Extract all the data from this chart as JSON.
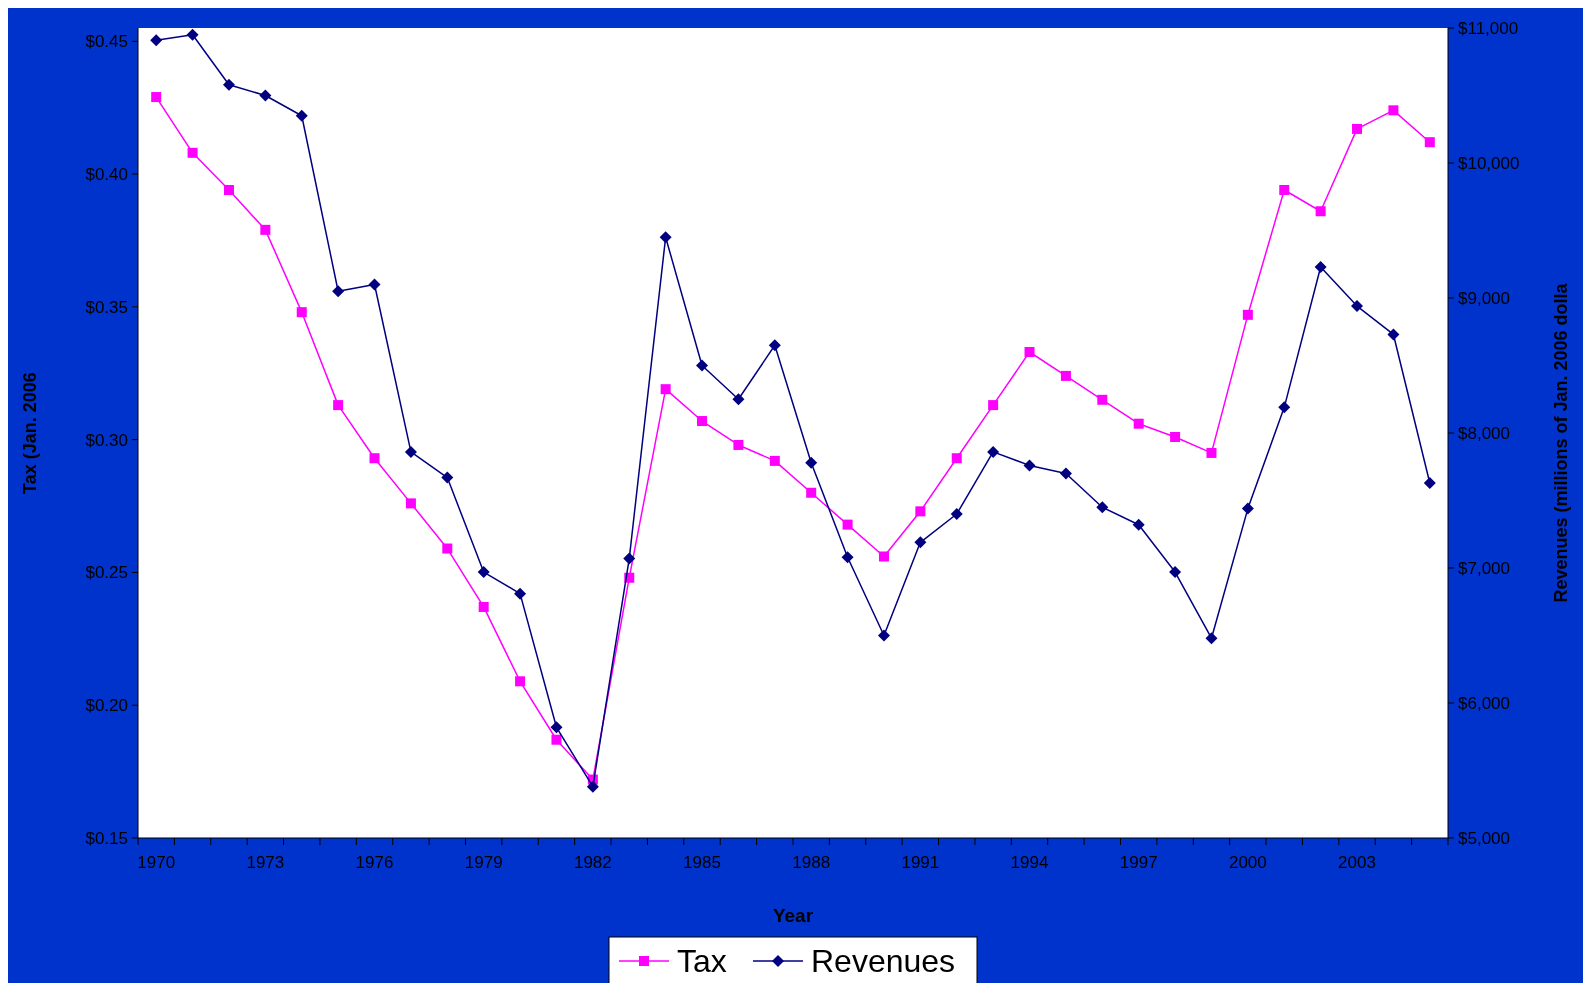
{
  "chart_data": {
    "type": "line",
    "xlabel": "Year",
    "ylabel": "Tax (Jan. 2006",
    "y2label": "Revenues (millions of Jan. 2006 dolla",
    "categories": [
      "1970",
      null,
      null,
      "1973",
      null,
      null,
      "1976",
      null,
      null,
      "1979",
      null,
      null,
      "1982",
      null,
      null,
      "1985",
      null,
      null,
      "1988",
      null,
      null,
      "1991",
      null,
      null,
      "1994",
      null,
      null,
      "1997",
      null,
      null,
      "2000",
      null,
      null,
      "2003",
      null,
      null
    ],
    "series": [
      {
        "name": "Tax",
        "color": "#ff00ff",
        "marker": "square",
        "values": [
          0.429,
          0.408,
          0.394,
          0.379,
          0.348,
          0.313,
          0.293,
          0.276,
          0.259,
          0.237,
          0.209,
          0.187,
          0.172,
          0.248,
          0.319,
          0.307,
          0.298,
          0.292,
          0.28,
          0.268,
          0.256,
          0.273,
          0.293,
          0.313,
          0.333,
          0.324,
          0.315,
          0.306,
          0.301,
          0.295,
          0.347,
          0.394,
          0.386,
          0.417,
          0.424,
          0.412
        ]
      },
      {
        "name": "Revenues",
        "color": "#000080",
        "marker": "diamond",
        "axis": "y2",
        "values": [
          10910,
          10950,
          10580,
          10500,
          10350,
          9050,
          9100,
          7860,
          7670,
          6970,
          6810,
          5820,
          5380,
          7070,
          9450,
          8500,
          8250,
          8650,
          7780,
          7080,
          6500,
          7190,
          7400,
          7860,
          7760,
          7700,
          7450,
          7320,
          6970,
          6480,
          7440,
          8190,
          9230,
          8940,
          8730,
          7630
        ]
      }
    ],
    "ylim": [
      0.15,
      0.455
    ],
    "yticks": [
      {
        "value": 0.15,
        "label": "$0.15"
      },
      {
        "value": 0.2,
        "label": "$0.20"
      },
      {
        "value": 0.25,
        "label": "$0.25"
      },
      {
        "value": 0.3,
        "label": "$0.30"
      },
      {
        "value": 0.35,
        "label": "$0.35"
      },
      {
        "value": 0.4,
        "label": "$0.40"
      },
      {
        "value": 0.45,
        "label": "$0.45"
      }
    ],
    "y2lim": [
      5000,
      11000
    ],
    "y2ticks": [
      {
        "value": 5000,
        "label": "$5,000"
      },
      {
        "value": 6000,
        "label": "$6,000"
      },
      {
        "value": 7000,
        "label": "$7,000"
      },
      {
        "value": 8000,
        "label": "$8,000"
      },
      {
        "value": 9000,
        "label": "$9,000"
      },
      {
        "value": 10000,
        "label": "$10,000"
      },
      {
        "value": 11000,
        "label": "$11,000"
      }
    ],
    "grid": false,
    "legend": "bottom"
  }
}
